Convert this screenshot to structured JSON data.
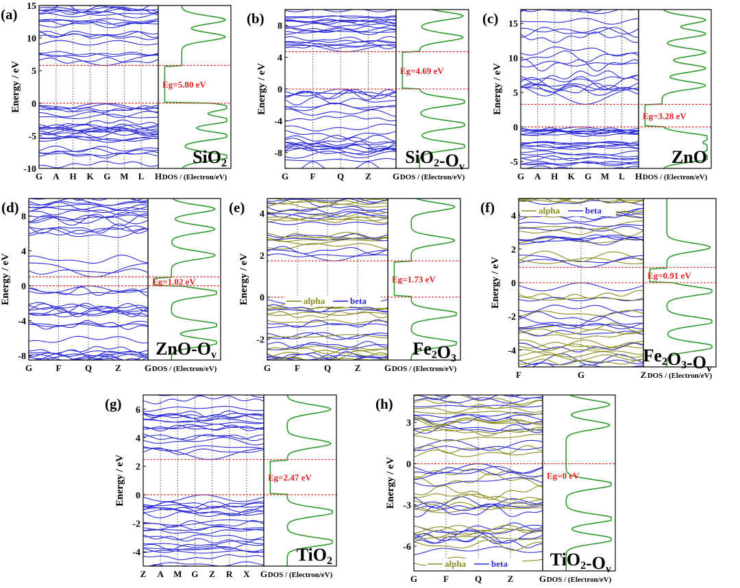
{
  "figure": {
    "ylabel": "Energy / eV",
    "dos_label": "DOS / (Electron/eV)"
  },
  "colors": {
    "band": "#2b2bd6",
    "alpha": "#8a8a1e",
    "dos": "#2e9a2e",
    "gap": "#e21d1d",
    "axis": "#000000",
    "vline": "#555555"
  },
  "chart_data": [
    {
      "type": "line",
      "panel": "(a)",
      "material": "SiO2",
      "material_parts": [
        {
          "t": "SiO",
          "s": false
        },
        {
          "t": "2",
          "s": true
        }
      ],
      "ylim": [
        -10,
        15
      ],
      "yticks": [
        -10,
        -5,
        0,
        5,
        10,
        15
      ],
      "kpoints": [
        "G",
        "A",
        "H",
        "K",
        "G",
        "M",
        "L",
        "H"
      ],
      "gap_lines": [
        0,
        5.8
      ],
      "gap_label": "Eg=5.80 eV",
      "vbm": 0,
      "cbm": 5.8,
      "vb_range": [
        -10,
        0
      ],
      "cb_range": [
        5.8,
        15
      ],
      "dos_peaks_vb": [
        -0.6,
        -2.6,
        -5.0,
        -8.2
      ],
      "dos_peaks_cb": [
        10.2,
        12.8
      ],
      "legend": "none",
      "spin": false
    },
    {
      "type": "line",
      "panel": "(b)",
      "material": "SiO2-Ov",
      "material_parts": [
        {
          "t": "SiO",
          "s": false
        },
        {
          "t": "2",
          "s": true
        },
        {
          "t": "-O",
          "s": false
        },
        {
          "t": "v",
          "s": true
        }
      ],
      "ylim": [
        -10,
        10
      ],
      "yticks": [
        -8,
        -4,
        0,
        4,
        8
      ],
      "kpoints": [
        "G",
        "F",
        "Q",
        "Z",
        "G"
      ],
      "gap_lines": [
        0,
        4.69
      ],
      "gap_label": "Eg=4.69 eV",
      "vbm": 0,
      "cbm": 4.69,
      "vb_range": [
        -10,
        0
      ],
      "cb_range": [
        4.69,
        10
      ],
      "dos_peaks_vb": [
        -1.6,
        -4.5,
        -7.2
      ],
      "dos_peaks_cb": [
        6.5,
        9.2
      ],
      "legend": "none",
      "spin": false
    },
    {
      "type": "line",
      "panel": "(c)",
      "material": "ZnO",
      "material_parts": [
        {
          "t": "ZnO",
          "s": false
        }
      ],
      "ylim": [
        -6,
        17
      ],
      "yticks": [
        -5,
        0,
        5,
        10,
        15
      ],
      "kpoints": [
        "G",
        "A",
        "H",
        "K",
        "G",
        "M",
        "L",
        "H"
      ],
      "gap_lines": [
        0,
        3.28
      ],
      "gap_label": "Eg=3.28 eV",
      "vbm": 0,
      "cbm": 3.28,
      "vb_range": [
        -6,
        0
      ],
      "cb_range": [
        3.28,
        17
      ],
      "dos_peaks_vb": [
        -1.5,
        -3.0,
        -4.5
      ],
      "dos_peaks_cb": [
        6.0,
        8.5,
        10.8,
        13.5,
        15.5
      ],
      "legend": "none",
      "spin": false
    },
    {
      "type": "line",
      "panel": "(d)",
      "material": "ZnO-Ov",
      "material_parts": [
        {
          "t": "ZnO-O",
          "s": false
        },
        {
          "t": "v",
          "s": true
        }
      ],
      "ylim": [
        -8.5,
        10
      ],
      "yticks": [
        -8,
        -4,
        0,
        4,
        8
      ],
      "kpoints": [
        "G",
        "F",
        "Q",
        "Z",
        "G"
      ],
      "gap_lines": [
        0,
        1.02
      ],
      "gap_label": "Eg=1.02 eV",
      "vbm": 0,
      "cbm": 1.02,
      "vb_range": [
        -8.5,
        0
      ],
      "cb_range": [
        1.02,
        10
      ],
      "dos_peaks_vb": [
        -0.8,
        -4.5,
        -6.5
      ],
      "dos_peaks_cb": [
        3.5,
        6.5,
        8.8
      ],
      "legend": "none",
      "spin": false
    },
    {
      "type": "line",
      "panel": "(e)",
      "material": "Fe2O3",
      "material_parts": [
        {
          "t": "Fe",
          "s": false
        },
        {
          "t": "2",
          "s": true
        },
        {
          "t": "O",
          "s": false
        },
        {
          "t": "3",
          "s": true
        }
      ],
      "ylim": [
        -3,
        4.7
      ],
      "yticks": [
        -2,
        0,
        2,
        4
      ],
      "kpoints": [
        "G",
        "F",
        "Q",
        "Z",
        "G"
      ],
      "gap_lines": [
        0,
        1.73
      ],
      "gap_label": "Eg=1.73 eV",
      "vbm": 0,
      "cbm": 1.73,
      "vb_range": [
        -3,
        0
      ],
      "cb_range": [
        1.73,
        4.7
      ],
      "dos_peaks_vb": [
        -0.8,
        -2.2
      ],
      "dos_peaks_cb": [
        2.7,
        4.3
      ],
      "legend": "inside-lower-left",
      "legend_alpha": "alpha",
      "legend_beta": "beta",
      "spin": true
    },
    {
      "type": "line",
      "panel": "(f)",
      "material": "Fe2O3-Ov",
      "material_parts": [
        {
          "t": "Fe",
          "s": false
        },
        {
          "t": "2",
          "s": true
        },
        {
          "t": "O",
          "s": false
        },
        {
          "t": "3",
          "s": true
        },
        {
          "t": "-O",
          "s": false
        },
        {
          "t": "v",
          "s": true
        }
      ],
      "ylim": [
        -5,
        5
      ],
      "yticks": [
        -4,
        -2,
        0,
        2,
        4
      ],
      "kpoints": [
        "F",
        "G",
        "Z"
      ],
      "gap_lines": [
        0,
        0.91
      ],
      "gap_label": "Eg=0.91 eV",
      "vbm": 0,
      "cbm": 0.91,
      "vb_range": [
        -5,
        0
      ],
      "cb_range": [
        0.91,
        5
      ],
      "dos_peaks_vb": [
        -0.5,
        -2.3,
        -3.8
      ],
      "dos_peaks_cb": [
        2.1
      ],
      "legend": "top-left",
      "legend_alpha": "alpha",
      "legend_beta": "beta",
      "spin": true
    },
    {
      "type": "line",
      "panel": "(g)",
      "material": "TiO2",
      "material_parts": [
        {
          "t": "TiO",
          "s": false
        },
        {
          "t": "2",
          "s": true
        }
      ],
      "ylim": [
        -5,
        7
      ],
      "yticks": [
        -4,
        -2,
        0,
        2,
        4,
        6
      ],
      "kpoints": [
        "Z",
        "A",
        "M",
        "G",
        "Z",
        "R",
        "X",
        "G"
      ],
      "gap_lines": [
        0,
        2.47
      ],
      "gap_label": "Eg=2.47 eV",
      "vbm": 0,
      "cbm": 2.47,
      "vb_range": [
        -5,
        0
      ],
      "cb_range": [
        2.47,
        7
      ],
      "dos_peaks_vb": [
        -1.2,
        -3.3
      ],
      "dos_peaks_cb": [
        3.6,
        6.0
      ],
      "legend": "none",
      "spin": false
    },
    {
      "type": "line",
      "panel": "(h)",
      "material": "TiO2-Ov",
      "material_parts": [
        {
          "t": "TiO",
          "s": false
        },
        {
          "t": "2",
          "s": true
        },
        {
          "t": "-O",
          "s": false
        },
        {
          "t": "v",
          "s": true
        }
      ],
      "ylim": [
        -7.8,
        5
      ],
      "yticks": [
        -6,
        -3,
        0,
        3
      ],
      "kpoints": [
        "G",
        "F",
        "Q",
        "Z",
        "G"
      ],
      "gap_lines": [
        0
      ],
      "gap_label": "Eg=0 eV",
      "vbm": 0,
      "cbm": 0,
      "vb_range": [
        -7.8,
        0
      ],
      "cb_range": [
        0,
        5
      ],
      "dos_peaks_vb": [
        -1.5,
        -4.0,
        -5.5
      ],
      "dos_peaks_cb": [
        2.8,
        4.3
      ],
      "legend": "bottom",
      "legend_alpha": "alpha",
      "legend_beta": "beta",
      "spin": true
    }
  ]
}
